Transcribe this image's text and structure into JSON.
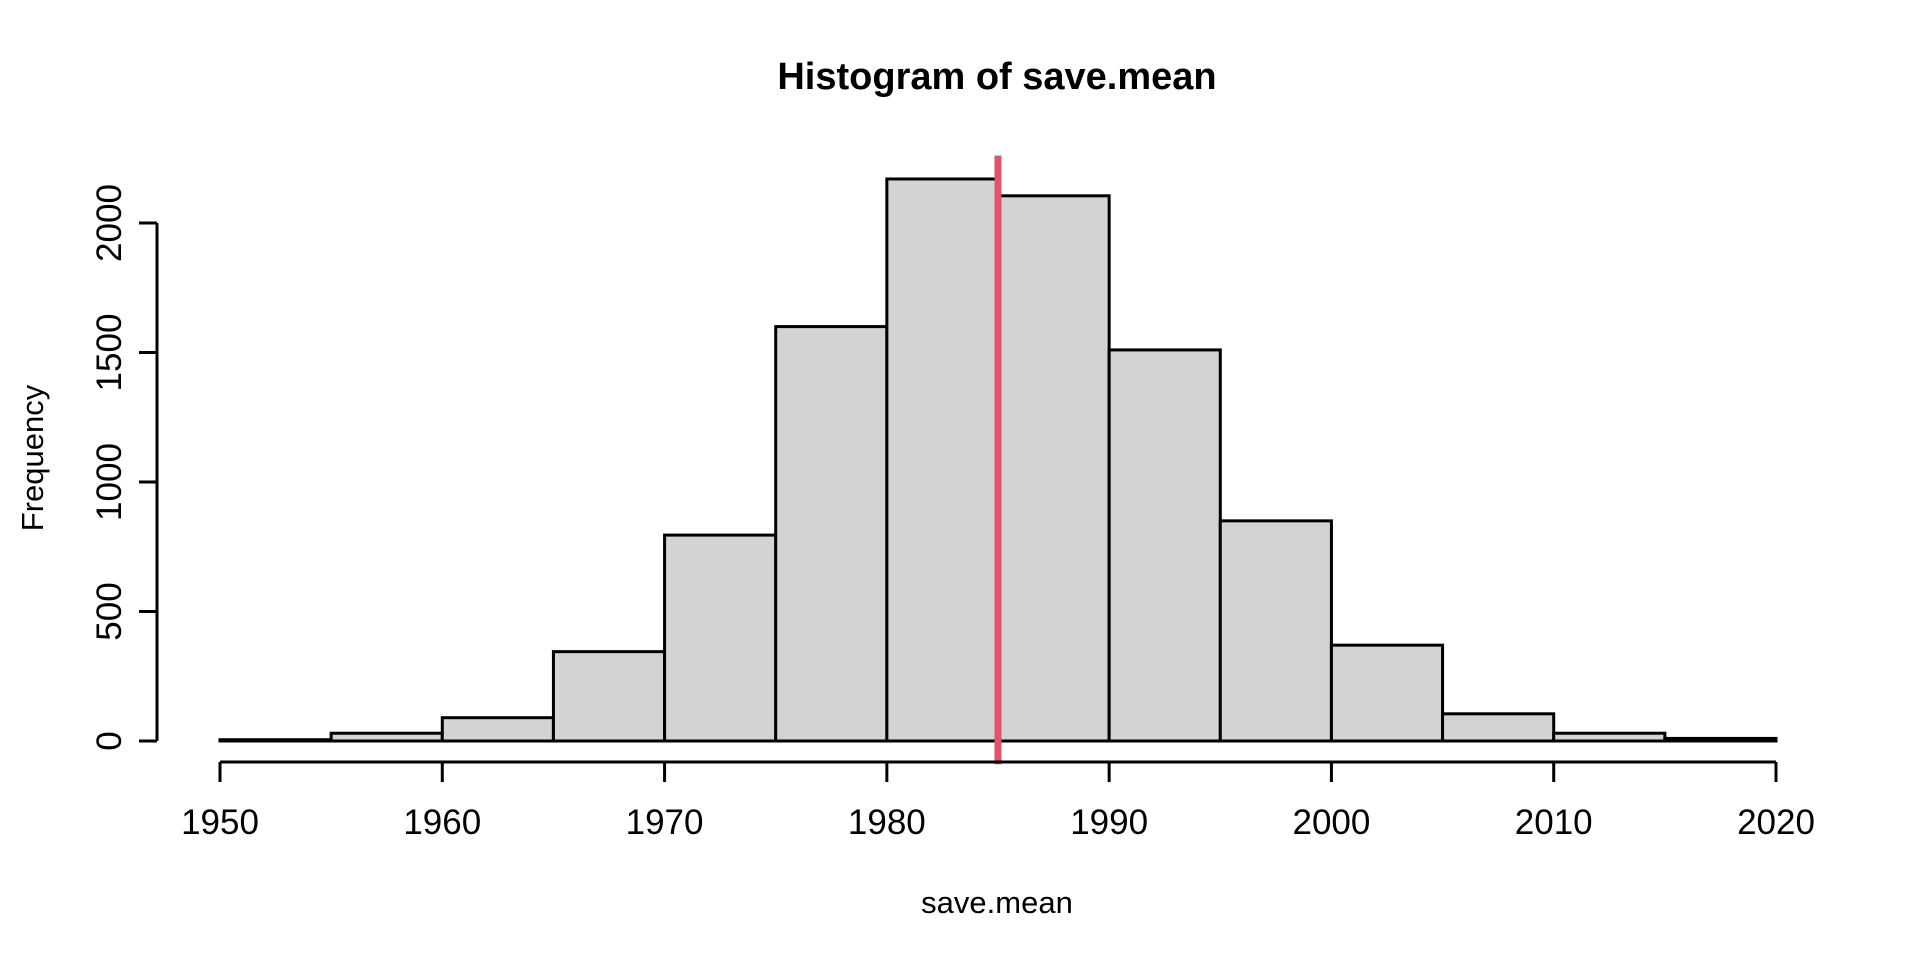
{
  "figure": {
    "background": "#FFFFFF"
  },
  "chart_data": {
    "type": "bar",
    "subtype": "histogram",
    "title": "Histogram of save.mean",
    "xlabel": "save.mean",
    "ylabel": "Frequency",
    "bin_edges": [
      1950,
      1955,
      1960,
      1965,
      1970,
      1975,
      1980,
      1985,
      1990,
      1995,
      2000,
      2005,
      2010,
      2015,
      2020
    ],
    "counts": [
      5,
      30,
      90,
      345,
      795,
      1600,
      2170,
      2105,
      1510,
      850,
      370,
      105,
      30,
      10
    ],
    "x_ticks": [
      1950,
      1960,
      1970,
      1980,
      1990,
      2000,
      2010,
      2020
    ],
    "y_ticks": [
      0,
      500,
      1000,
      1500,
      2000
    ],
    "xlim": [
      1947.2,
      2022.8
    ],
    "ylim": [
      -90,
      2260
    ],
    "grid": false,
    "legend": false,
    "mean_line": {
      "value": 1985,
      "color": "#DF536B",
      "stroke_width": 7
    },
    "bar_fill": "#D3D3D3",
    "bar_stroke": "#000000",
    "axis_color": "#000000"
  }
}
